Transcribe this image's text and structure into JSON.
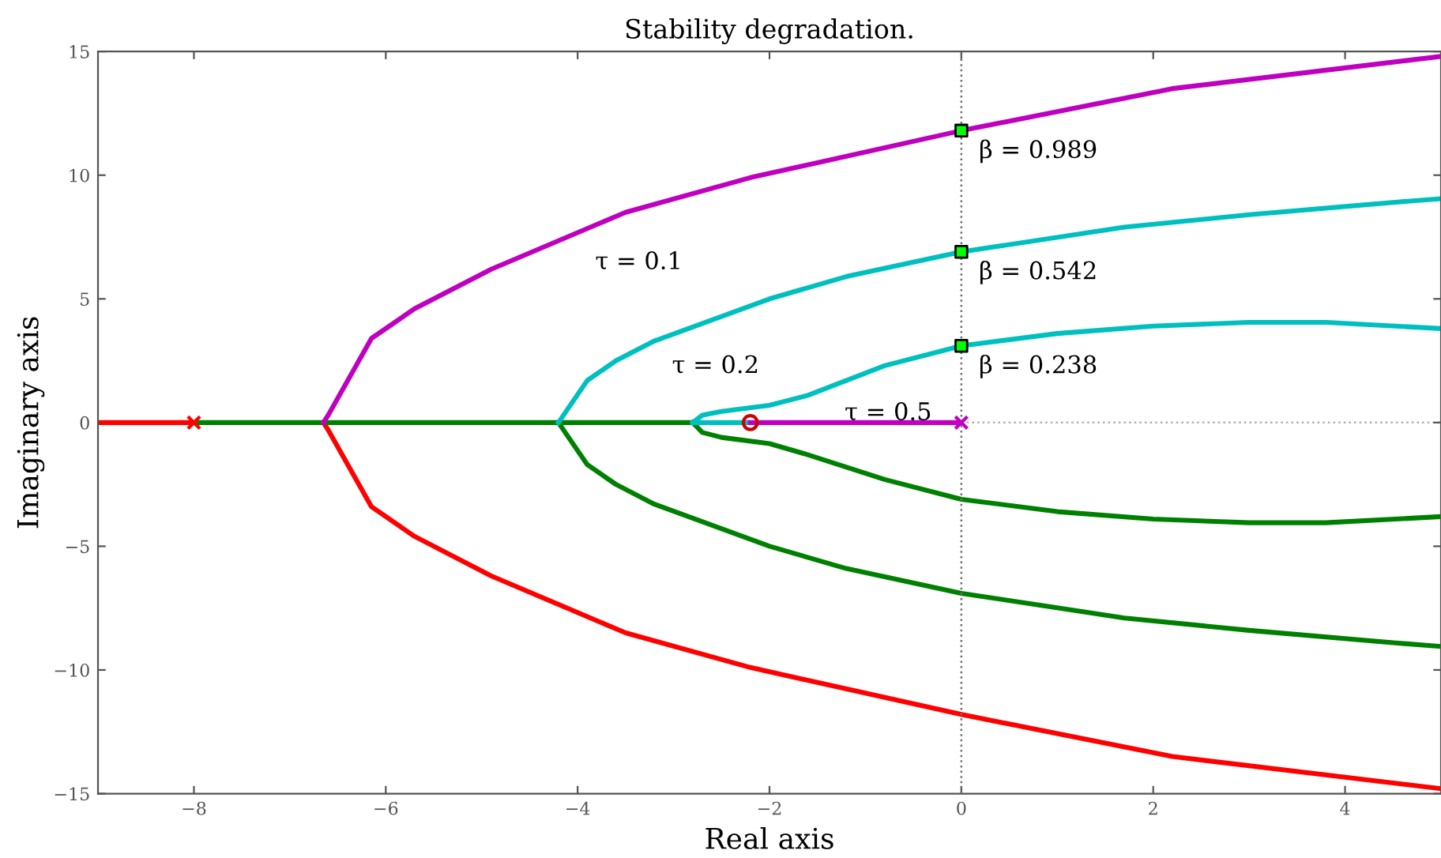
{
  "chart_data": {
    "type": "line",
    "title": "Stability degradation.",
    "xlabel": "Real axis",
    "ylabel": "Imaginary axis",
    "xlim": [
      -9,
      5
    ],
    "ylim": [
      -15,
      15
    ],
    "xticks": [
      {
        "value": -8,
        "label": "−8"
      },
      {
        "value": -6,
        "label": "−6"
      },
      {
        "value": -4,
        "label": "−4"
      },
      {
        "value": -2,
        "label": "−2"
      },
      0,
      2,
      4
    ],
    "yticks": [
      {
        "value": -15,
        "label": "−15"
      },
      {
        "value": -10,
        "label": "−10"
      },
      {
        "value": -5,
        "label": "−5"
      },
      0,
      5,
      10,
      15
    ],
    "grid": false,
    "legend": false,
    "marker": "none",
    "line_style": "solid",
    "ref_lines": [
      {
        "axis": "x",
        "value": 0,
        "color": "#707070",
        "line_style": "dotted"
      },
      {
        "axis": "y",
        "value": 0,
        "color": "#b0b0b0",
        "line_style": "dotted"
      }
    ],
    "series": [
      {
        "color": "#ff0000",
        "x": [
          -9,
          -8
        ],
        "values": [
          0,
          0
        ]
      },
      {
        "color": "#ff0000",
        "x": [
          -6.65,
          -6.6,
          -6.15,
          -5.7,
          -4.9,
          -3.5,
          -2.2,
          0,
          2.2,
          5
        ],
        "values": [
          0,
          -0.3,
          -3.4,
          -4.6,
          -6.2,
          -8.5,
          -9.9,
          -11.8,
          -13.5,
          -14.8
        ]
      },
      {
        "color": "#008000",
        "x": [
          -8,
          -2.8
        ],
        "values": [
          0,
          0
        ]
      },
      {
        "color": "#008000",
        "x": [
          -4.2,
          -3.9,
          -3.6,
          -3.2,
          -2,
          -1.2,
          0,
          1.7,
          3,
          4.5,
          5
        ],
        "values": [
          0,
          -1.7,
          -2.5,
          -3.3,
          -5,
          -5.9,
          -6.9,
          -7.9,
          -8.4,
          -8.9,
          -9.05
        ]
      },
      {
        "color": "#008000",
        "x": [
          -2.8,
          -2.7,
          -2.5,
          -2,
          -1.6,
          -0.8,
          0,
          1,
          2,
          3,
          3.8,
          5
        ],
        "values": [
          0,
          -0.4,
          -0.6,
          -0.85,
          -1.3,
          -2.3,
          -3.1,
          -3.6,
          -3.9,
          -4.05,
          -4.05,
          -3.8
        ]
      },
      {
        "color": "#bf00bf",
        "x": [
          -6.65,
          -6.6,
          -6.15,
          -5.7,
          -4.9,
          -3.5,
          -2.2,
          0,
          2.2,
          5
        ],
        "values": [
          0,
          0.3,
          3.4,
          4.6,
          6.2,
          8.5,
          9.9,
          11.8,
          13.5,
          14.8
        ]
      },
      {
        "color": "#bf00bf",
        "x": [
          -2.25,
          0
        ],
        "values": [
          0,
          0
        ]
      },
      {
        "color": "#00bfbf",
        "x": [
          -4.2,
          -3.9,
          -3.6,
          -3.2,
          -2,
          -1.2,
          0,
          1.7,
          3,
          4.5,
          5
        ],
        "values": [
          0,
          1.7,
          2.5,
          3.3,
          5,
          5.9,
          6.9,
          7.9,
          8.4,
          8.9,
          9.05
        ]
      },
      {
        "color": "#00bfbf",
        "x": [
          -2.8,
          -2.7,
          -2.5,
          -2,
          -1.6,
          -0.8,
          0,
          1,
          2,
          3,
          3.8,
          5
        ],
        "values": [
          0,
          0.3,
          0.45,
          0.7,
          1.1,
          2.3,
          3.1,
          3.6,
          3.9,
          4.05,
          4.05,
          3.8
        ]
      },
      {
        "color": "#00bfbf",
        "x": [
          -2.8,
          -2.25
        ],
        "values": [
          0,
          0
        ]
      },
      {
        "type": "scatter",
        "marker": "cross",
        "color": "#ff0000",
        "x": [
          -8
        ],
        "values": [
          0
        ]
      },
      {
        "type": "scatter",
        "marker": "cross",
        "color": "#bf00bf",
        "x": [
          0
        ],
        "values": [
          0
        ]
      },
      {
        "type": "scatter",
        "marker": "circle",
        "color": "#cc0000",
        "x": [
          -2.2
        ],
        "values": [
          0
        ]
      },
      {
        "type": "scatter",
        "marker": "square",
        "color": "#00ff00",
        "x": [
          0,
          0,
          0
        ],
        "values": [
          11.8,
          6.9,
          3.1
        ]
      }
    ],
    "annotations": [
      {
        "text": "τ = 0.1",
        "x": -4,
        "y": 7.3
      },
      {
        "text": "τ = 0.2",
        "x": -3.2,
        "y": 3.1
      },
      {
        "text": "τ = 0.5",
        "x": -1.4,
        "y": 1.2
      },
      {
        "text": "β = 0.989",
        "x": 0,
        "y": 11.8
      },
      {
        "text": "β = 0.542",
        "x": 0,
        "y": 6.9
      },
      {
        "text": "β = 0.238",
        "x": 0,
        "y": 3.1
      }
    ]
  }
}
